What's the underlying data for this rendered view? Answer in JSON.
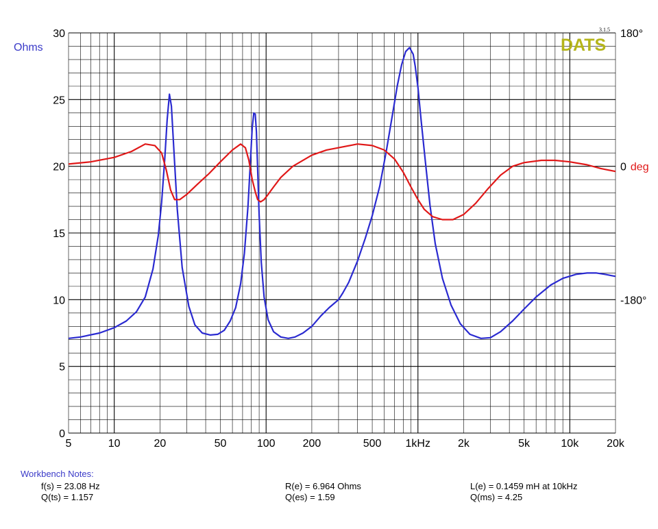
{
  "brand": {
    "name": "DATS",
    "version": "3.1.5",
    "color": "#b5b51a"
  },
  "chart_data": {
    "type": "line",
    "x_scale": "log",
    "xlim": [
      5,
      20000
    ],
    "ylim": [
      0,
      30
    ],
    "phase_lim": [
      -360,
      180
    ],
    "grid": true,
    "ylabel": "Ohms",
    "y_ticks": [
      "0",
      "5",
      "10",
      "15",
      "20",
      "25",
      "30"
    ],
    "x_ticks": [
      {
        "v": 5,
        "label": "5"
      },
      {
        "v": 10,
        "label": "10"
      },
      {
        "v": 20,
        "label": "20"
      },
      {
        "v": 50,
        "label": "50"
      },
      {
        "v": 100,
        "label": "100"
      },
      {
        "v": 200,
        "label": "200"
      },
      {
        "v": 500,
        "label": "500"
      },
      {
        "v": 1000,
        "label": "1kHz"
      },
      {
        "v": 2000,
        "label": "2k"
      },
      {
        "v": 5000,
        "label": "5k"
      },
      {
        "v": 10000,
        "label": "10k"
      },
      {
        "v": 20000,
        "label": "20k"
      }
    ],
    "phase_ticks": [
      {
        "v": 180,
        "label": "180°"
      },
      {
        "v": 0,
        "label": "0",
        "unit": "deg"
      },
      {
        "v": -180,
        "label": "-180°"
      }
    ],
    "series": [
      {
        "axis": "impedance",
        "color": "#2a2ad0",
        "x": [
          5,
          6,
          8,
          10,
          12,
          14,
          16,
          18,
          19.5,
          20.5,
          21.5,
          22.3,
          23.08,
          23.8,
          24.7,
          26,
          28,
          31,
          34,
          38,
          43,
          48,
          53,
          58,
          63,
          68,
          72,
          76,
          79,
          81,
          83,
          84.8,
          86.3,
          88,
          90,
          93,
          97,
          103,
          112,
          125,
          140,
          155,
          175,
          200,
          230,
          260,
          300,
          320,
          350,
          400,
          450,
          500,
          560,
          620,
          680,
          730,
          780,
          830,
          880,
          930,
          960,
          1000,
          1050,
          1120,
          1200,
          1300,
          1450,
          1650,
          1900,
          2200,
          2600,
          3000,
          3500,
          4200,
          5000,
          6000,
          7500,
          9000,
          11000,
          13000,
          15000,
          17000,
          20000
        ],
        "values": [
          7.1,
          7.2,
          7.5,
          7.9,
          8.4,
          9.1,
          10.2,
          12.3,
          14.8,
          17.3,
          20.5,
          23.5,
          25.4,
          24.5,
          21.2,
          16.8,
          12.4,
          9.5,
          8.1,
          7.5,
          7.35,
          7.4,
          7.7,
          8.4,
          9.4,
          11.2,
          13.5,
          17.0,
          20.6,
          22.9,
          24.0,
          23.9,
          22.6,
          19.8,
          16.3,
          12.8,
          10.2,
          8.5,
          7.6,
          7.2,
          7.1,
          7.2,
          7.5,
          8.0,
          8.8,
          9.4,
          10.0,
          10.5,
          11.3,
          12.9,
          14.6,
          16.3,
          18.5,
          21.2,
          23.9,
          26.0,
          27.6,
          28.6,
          28.9,
          28.4,
          27.5,
          25.9,
          23.4,
          20.3,
          17.1,
          14.2,
          11.6,
          9.6,
          8.2,
          7.4,
          7.1,
          7.15,
          7.6,
          8.4,
          9.3,
          10.2,
          11.1,
          11.6,
          11.9,
          12.0,
          12.0,
          11.9,
          11.75
        ]
      },
      {
        "axis": "phase",
        "color": "#e01818",
        "x": [
          5,
          7,
          10,
          13,
          16,
          18.5,
          20.5,
          22,
          23.5,
          25,
          27,
          30,
          35,
          42,
          50,
          60,
          68,
          73,
          77,
          81,
          85,
          88,
          92,
          97,
          103,
          112,
          125,
          150,
          200,
          250,
          300,
          400,
          500,
          600,
          700,
          800,
          900,
          1000,
          1100,
          1250,
          1450,
          1700,
          2000,
          2400,
          2900,
          3500,
          4200,
          5000,
          6500,
          8000,
          10000,
          13000,
          16000,
          20000
        ],
        "values": [
          3,
          6,
          12,
          20,
          30,
          28,
          18,
          -5,
          -32,
          -45,
          -45,
          -38,
          -25,
          -10,
          6,
          22,
          30,
          25,
          8,
          -18,
          -35,
          -45,
          -48,
          -45,
          -38,
          -28,
          -15,
          0,
          15,
          22,
          25,
          30,
          28,
          22,
          10,
          -8,
          -28,
          -45,
          -58,
          -68,
          -72,
          -72,
          -65,
          -50,
          -30,
          -12,
          0,
          5,
          8,
          8,
          6,
          2,
          -3,
          -7
        ]
      }
    ],
    "notes": {
      "title": "Workbench Notes:",
      "items": [
        "f(s) = 23.08 Hz",
        "Q(ts) = 1.157",
        "R(e) = 6.964 Ohms",
        "Q(es) = 1.59",
        "L(e) = 0.1459 mH at 10kHz",
        "Q(ms) = 4.25"
      ]
    }
  }
}
